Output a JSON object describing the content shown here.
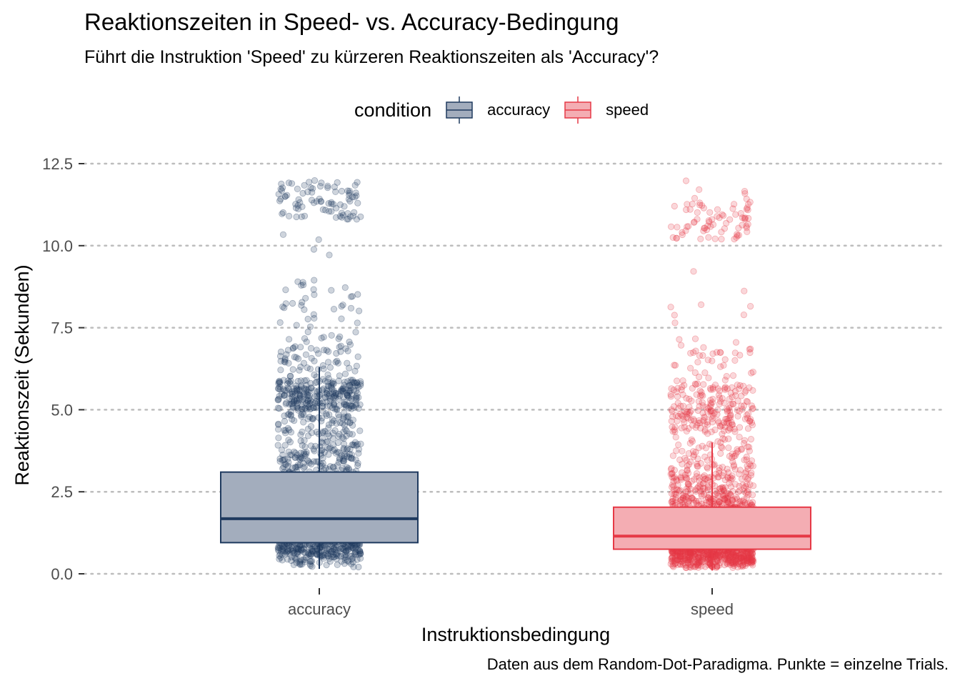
{
  "title": "Reaktionszeiten in Speed- vs. Accuracy-Bedingung",
  "subtitle": "Führt die Instruktion 'Speed' zu kürzeren Reaktionszeiten als 'Accuracy'?",
  "caption": "Daten aus dem Random-Dot-Paradigma. Punkte = einzelne Trials.",
  "legend": {
    "title": "condition",
    "items": [
      {
        "label": "accuracy",
        "color": "#1f3a5f",
        "fill": "#a3adbd"
      },
      {
        "label": "speed",
        "color": "#e63946",
        "fill": "#f4adb3"
      }
    ]
  },
  "chart_data": {
    "type": "box+jitter",
    "title": "Reaktionszeiten in Speed- vs. Accuracy-Bedingung",
    "subtitle": "Führt die Instruktion 'Speed' zu kürzeren Reaktionszeiten als 'Accuracy'?",
    "xlabel": "Instruktionsbedingung",
    "ylabel": "Reaktionszeit (Sekunden)",
    "ylim": [
      0,
      12.5
    ],
    "yticks": [
      0,
      2.5,
      5,
      7.5,
      10,
      12.5
    ],
    "ytick_labels": [
      "0.0",
      "2.5",
      "5.0",
      "7.5",
      "10.0",
      "12.5"
    ],
    "categories": [
      "accuracy",
      "speed"
    ],
    "grid": "horizontal dotted",
    "legend_position": "top",
    "boxes": [
      {
        "category": "accuracy",
        "whisker_low": 0.15,
        "q1": 0.95,
        "median": 1.68,
        "q3": 3.1,
        "whisker_high": 6.3
      },
      {
        "category": "speed",
        "whisker_low": 0.1,
        "q1": 0.75,
        "median": 1.15,
        "q3": 2.03,
        "whisker_high": 4.0
      }
    ]
  }
}
